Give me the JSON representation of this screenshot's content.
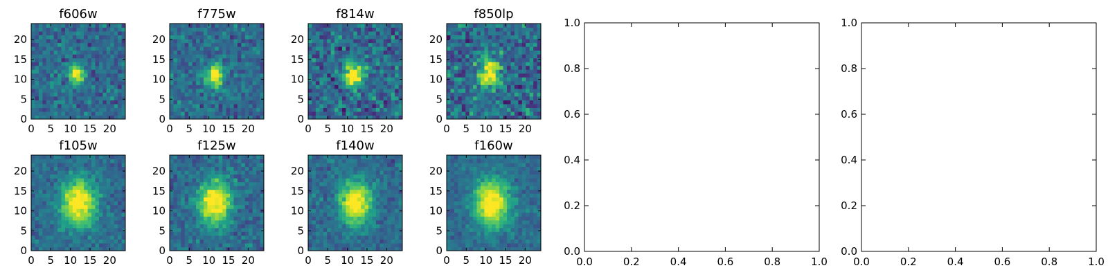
{
  "chart_data": [
    {
      "type": "heatmap",
      "title": "f606w",
      "xlim": [
        0,
        24
      ],
      "ylim": [
        0,
        24
      ],
      "xticks": [
        "0",
        "5",
        "10",
        "15",
        "20"
      ],
      "yticks": [
        "0",
        "5",
        "10",
        "15",
        "20"
      ],
      "colormap": "viridis",
      "peak": {
        "x": 11.5,
        "y": 11
      },
      "spread": 1.4,
      "noise": 0.22
    },
    {
      "type": "heatmap",
      "title": "f775w",
      "xlim": [
        0,
        24
      ],
      "ylim": [
        0,
        24
      ],
      "xticks": [
        "0",
        "5",
        "10",
        "15",
        "20"
      ],
      "yticks": [
        "0",
        "5",
        "10",
        "15",
        "20"
      ],
      "colormap": "viridis",
      "peak": {
        "x": 11.5,
        "y": 11
      },
      "spread": 1.5,
      "noise": 0.22
    },
    {
      "type": "heatmap",
      "title": "f814w",
      "xlim": [
        0,
        24
      ],
      "ylim": [
        0,
        24
      ],
      "xticks": [
        "0",
        "5",
        "10",
        "15",
        "20"
      ],
      "yticks": [
        "0",
        "5",
        "10",
        "15",
        "20"
      ],
      "colormap": "viridis",
      "peak": {
        "x": 11.5,
        "y": 11
      },
      "spread": 1.8,
      "noise": 0.3
    },
    {
      "type": "heatmap",
      "title": "f850lp",
      "xlim": [
        0,
        24
      ],
      "ylim": [
        0,
        24
      ],
      "xticks": [
        "0",
        "5",
        "10",
        "15",
        "20"
      ],
      "yticks": [
        "0",
        "5",
        "10",
        "15",
        "20"
      ],
      "colormap": "viridis",
      "peak": {
        "x": 11,
        "y": 11.5
      },
      "spread": 2.0,
      "noise": 0.32
    },
    {
      "type": "heatmap",
      "title": "f105w",
      "xlim": [
        0,
        24
      ],
      "ylim": [
        0,
        24
      ],
      "xticks": [
        "0",
        "5",
        "10",
        "15",
        "20"
      ],
      "yticks": [
        "0",
        "5",
        "10",
        "15",
        "20"
      ],
      "colormap": "viridis",
      "peak": {
        "x": 12,
        "y": 12
      },
      "spread": 3.2,
      "noise": 0.16
    },
    {
      "type": "heatmap",
      "title": "f125w",
      "xlim": [
        0,
        24
      ],
      "ylim": [
        0,
        24
      ],
      "xticks": [
        "0",
        "5",
        "10",
        "15",
        "20"
      ],
      "yticks": [
        "0",
        "5",
        "10",
        "15",
        "20"
      ],
      "colormap": "viridis",
      "peak": {
        "x": 11.5,
        "y": 12
      },
      "spread": 3.0,
      "noise": 0.2
    },
    {
      "type": "heatmap",
      "title": "f140w",
      "xlim": [
        0,
        24
      ],
      "ylim": [
        0,
        24
      ],
      "xticks": [
        "0",
        "5",
        "10",
        "15",
        "20"
      ],
      "yticks": [
        "0",
        "5",
        "10",
        "15",
        "20"
      ],
      "colormap": "viridis",
      "peak": {
        "x": 12,
        "y": 12
      },
      "spread": 2.9,
      "noise": 0.17
    },
    {
      "type": "heatmap",
      "title": "f160w",
      "xlim": [
        0,
        24
      ],
      "ylim": [
        0,
        24
      ],
      "xticks": [
        "0",
        "5",
        "10",
        "15",
        "20"
      ],
      "yticks": [
        "0",
        "5",
        "10",
        "15",
        "20"
      ],
      "colormap": "viridis",
      "peak": {
        "x": 11.5,
        "y": 12
      },
      "spread": 3.3,
      "noise": 0.15
    },
    {
      "type": "scatter",
      "title": "",
      "xlabel": "",
      "ylabel": "",
      "xlim": [
        0,
        1
      ],
      "ylim": [
        0,
        1
      ],
      "xticks": [
        "0.0",
        "0.2",
        "0.4",
        "0.6",
        "0.8",
        "1.0"
      ],
      "yticks": [
        "0.0",
        "0.2",
        "0.4",
        "0.6",
        "0.8",
        "1.0"
      ],
      "series": []
    },
    {
      "type": "scatter",
      "title": "",
      "xlabel": "",
      "ylabel": "",
      "xlim": [
        0,
        1
      ],
      "ylim": [
        0,
        1
      ],
      "xticks": [
        "0.0",
        "0.2",
        "0.4",
        "0.6",
        "0.8",
        "1.0"
      ],
      "yticks": [
        "0.0",
        "0.2",
        "0.4",
        "0.6",
        "0.8",
        "1.0"
      ],
      "series": []
    }
  ]
}
